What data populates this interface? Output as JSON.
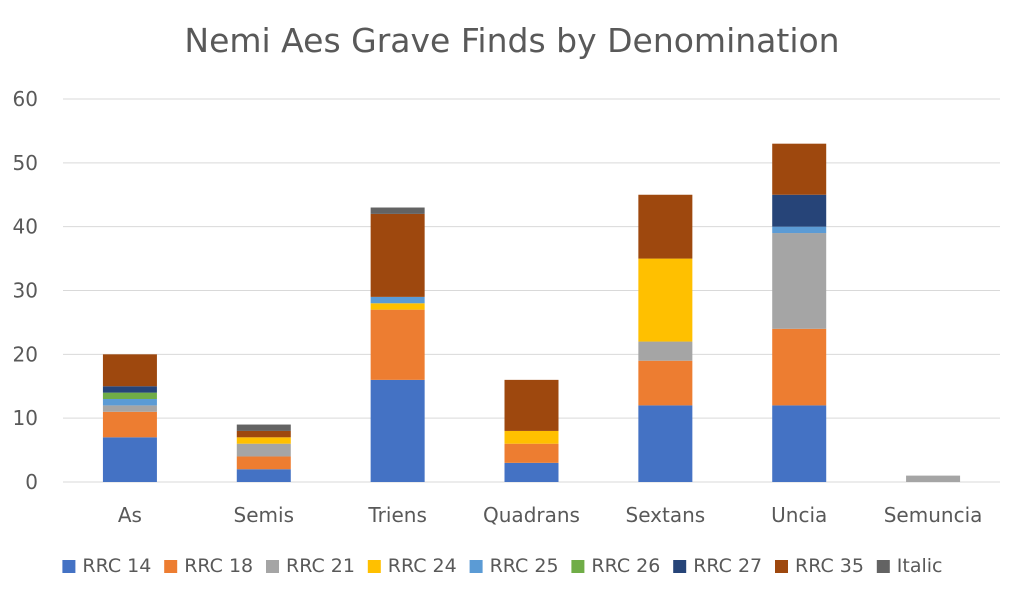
{
  "chart_data": {
    "type": "bar",
    "stacked": true,
    "title": "Nemi Aes Grave Finds by Denomination",
    "xlabel": "",
    "ylabel": "",
    "ylim": [
      0,
      60
    ],
    "yticks": [
      0,
      10,
      20,
      30,
      40,
      50,
      60
    ],
    "grid": true,
    "legend_position": "bottom",
    "categories": [
      "As",
      "Semis",
      "Triens",
      "Quadrans",
      "Sextans",
      "Uncia",
      "Semuncia"
    ],
    "series": [
      {
        "name": "RRC 14",
        "color": "#4472C4",
        "values": [
          7,
          2,
          16,
          3,
          12,
          12,
          0
        ]
      },
      {
        "name": "RRC 18",
        "color": "#ED7D31",
        "values": [
          4,
          2,
          11,
          3,
          7,
          12,
          0
        ]
      },
      {
        "name": "RRC 21",
        "color": "#A5A5A5",
        "values": [
          1,
          2,
          0,
          0,
          3,
          15,
          1
        ]
      },
      {
        "name": "RRC 24",
        "color": "#FFC000",
        "values": [
          0,
          1,
          1,
          2,
          13,
          0,
          0
        ]
      },
      {
        "name": "RRC 25",
        "color": "#5B9BD5",
        "values": [
          1,
          0,
          1,
          0,
          0,
          1,
          0
        ]
      },
      {
        "name": "RRC 26",
        "color": "#70AD47",
        "values": [
          1,
          0,
          0,
          0,
          0,
          0,
          0
        ]
      },
      {
        "name": "RRC 27",
        "color": "#264478",
        "values": [
          1,
          0,
          0,
          0,
          0,
          5,
          0
        ]
      },
      {
        "name": "RRC 35",
        "color": "#9E480E",
        "values": [
          5,
          1,
          13,
          8,
          10,
          8,
          0
        ]
      },
      {
        "name": "Italic",
        "color": "#636363",
        "values": [
          0,
          1,
          1,
          0,
          0,
          0,
          0
        ]
      }
    ]
  }
}
